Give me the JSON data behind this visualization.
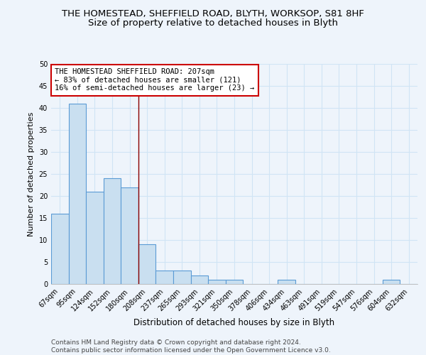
{
  "title1": "THE HOMESTEAD, SHEFFIELD ROAD, BLYTH, WORKSOP, S81 8HF",
  "title2": "Size of property relative to detached houses in Blyth",
  "xlabel": "Distribution of detached houses by size in Blyth",
  "ylabel": "Number of detached properties",
  "categories": [
    "67sqm",
    "95sqm",
    "124sqm",
    "152sqm",
    "180sqm",
    "208sqm",
    "237sqm",
    "265sqm",
    "293sqm",
    "321sqm",
    "350sqm",
    "378sqm",
    "406sqm",
    "434sqm",
    "463sqm",
    "491sqm",
    "519sqm",
    "547sqm",
    "576sqm",
    "604sqm",
    "632sqm"
  ],
  "values": [
    16,
    41,
    21,
    24,
    22,
    9,
    3,
    3,
    2,
    1,
    1,
    0,
    0,
    1,
    0,
    0,
    0,
    0,
    0,
    1,
    0
  ],
  "bar_color": "#c9dff0",
  "bar_edge_color": "#5b9bd5",
  "vline_color": "#8b0000",
  "vline_index": 5,
  "annotation_text": "THE HOMESTEAD SHEFFIELD ROAD: 207sqm\n← 83% of detached houses are smaller (121)\n16% of semi-detached houses are larger (23) →",
  "annotation_box_color": "white",
  "annotation_box_edge_color": "#cc0000",
  "ylim": [
    0,
    50
  ],
  "yticks": [
    0,
    5,
    10,
    15,
    20,
    25,
    30,
    35,
    40,
    45,
    50
  ],
  "footer1": "Contains HM Land Registry data © Crown copyright and database right 2024.",
  "footer2": "Contains public sector information licensed under the Open Government Licence v3.0.",
  "bg_color": "#eef4fb",
  "grid_color": "#d0e4f5",
  "title_fontsize": 9.5,
  "subtitle_fontsize": 9.5,
  "ylabel_fontsize": 8,
  "xlabel_fontsize": 8.5,
  "tick_fontsize": 7,
  "annotation_fontsize": 7.5,
  "footer_fontsize": 6.5
}
